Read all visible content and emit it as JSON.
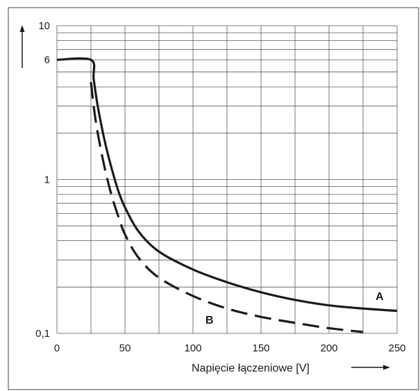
{
  "chart_data": {
    "type": "line",
    "xlabel": "Napięcie łączeniowe [V]",
    "ylabel": "",
    "yscale": "log",
    "xlim": [
      0,
      250
    ],
    "ylim": [
      0.1,
      10
    ],
    "x_ticks": [
      "0",
      "50",
      "100",
      "150",
      "200",
      "250"
    ],
    "y_ticks": [
      {
        "value": 10,
        "label": "10"
      },
      {
        "value": 6,
        "label": "6"
      },
      {
        "value": 1,
        "label": "1"
      },
      {
        "value": 0.1,
        "label": "0,1"
      }
    ],
    "grid": true,
    "series": [
      {
        "name": "A",
        "style": "solid",
        "x": [
          0,
          25,
          27,
          30,
          35,
          40,
          45,
          50,
          60,
          75,
          100,
          125,
          150,
          175,
          200,
          225,
          250
        ],
        "y": [
          6,
          6,
          4.5,
          3.0,
          1.8,
          1.2,
          0.85,
          0.66,
          0.46,
          0.34,
          0.26,
          0.215,
          0.185,
          0.165,
          0.152,
          0.145,
          0.14
        ]
      },
      {
        "name": "B",
        "style": "dashed",
        "x": [
          25,
          27,
          30,
          35,
          40,
          45,
          50,
          60,
          75,
          100,
          125,
          150,
          175,
          200,
          225
        ],
        "y": [
          4.3,
          3.0,
          2.0,
          1.2,
          0.8,
          0.58,
          0.44,
          0.31,
          0.23,
          0.175,
          0.145,
          0.128,
          0.117,
          0.108,
          0.102
        ]
      }
    ],
    "colors": {
      "line": "#1a1a1a",
      "grid": "#555555",
      "frame": "#444444"
    }
  }
}
